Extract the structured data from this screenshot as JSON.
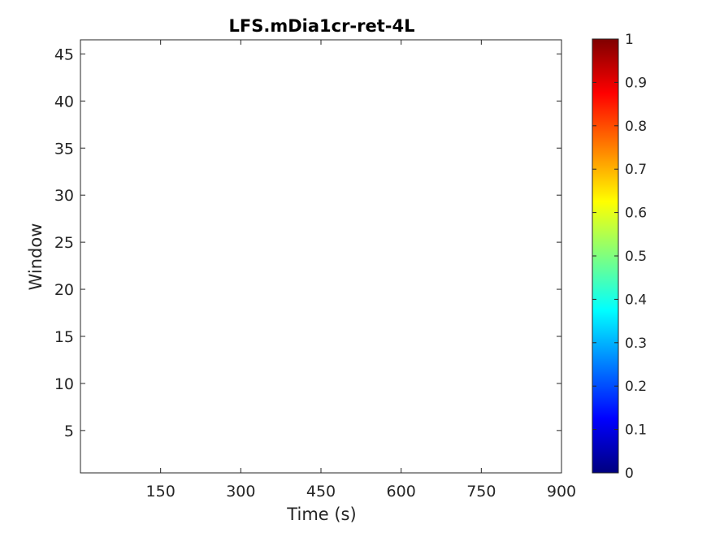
{
  "chart_data": {
    "type": "heatmap",
    "title": "LFS.mDia1cr-ret-4L",
    "xlabel": "Time (s)",
    "ylabel": "Window",
    "xlim": [
      0,
      900
    ],
    "ylim": [
      0.5,
      46.5
    ],
    "x_ticks": [
      150,
      300,
      450,
      600,
      750,
      900
    ],
    "y_ticks": [
      5,
      10,
      15,
      20,
      25,
      30,
      35,
      40,
      45
    ],
    "values": [],
    "grid": false,
    "colormap": "jet",
    "colorbar": {
      "range": [
        0,
        1
      ],
      "ticks": [
        "0",
        "0.1",
        "0.2",
        "0.3",
        "0.4",
        "0.5",
        "0.6",
        "0.7",
        "0.8",
        "0.9",
        "1"
      ],
      "colors": [
        "#00007f",
        "#0000ff",
        "#007fff",
        "#00ffff",
        "#7fff7f",
        "#ffff00",
        "#ff7f00",
        "#ff0000",
        "#7f0000"
      ]
    }
  }
}
